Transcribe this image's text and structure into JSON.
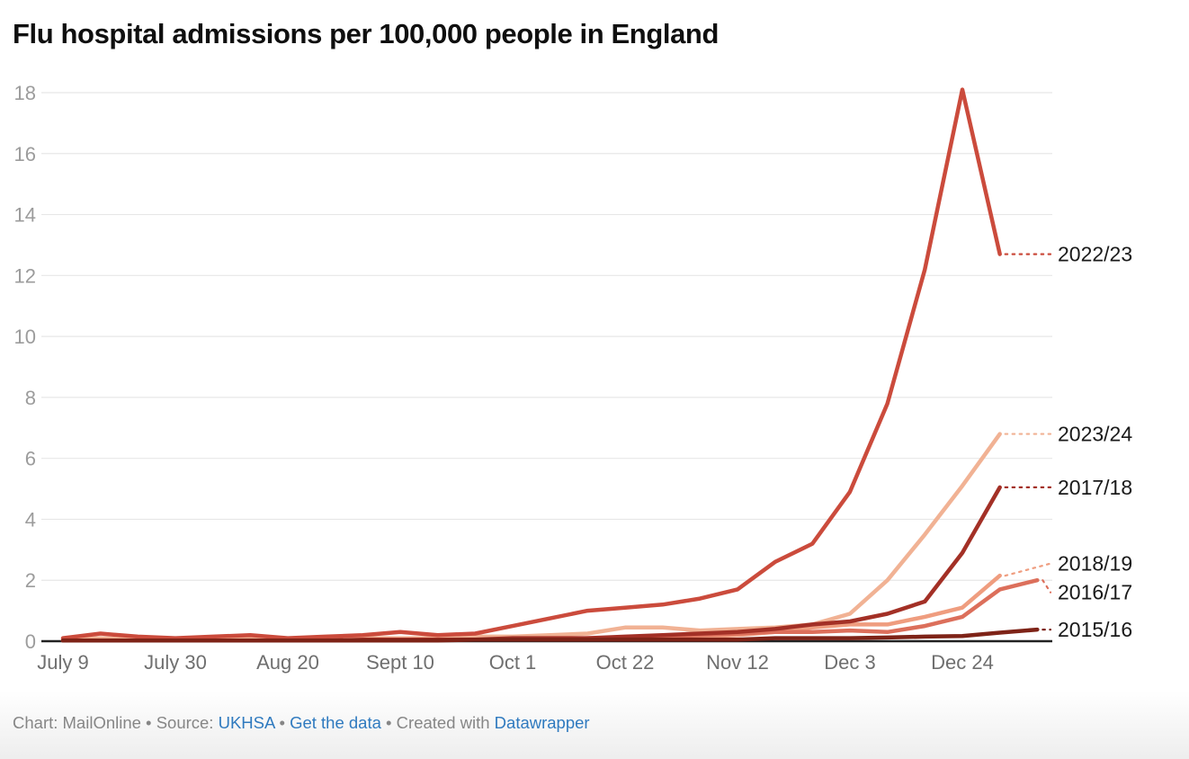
{
  "title": "Flu hospital admissions per 100,000 people in England",
  "footer": {
    "chart_credit": "Chart: MailOnline",
    "sep1": " • ",
    "source_label": "Source: ",
    "source_link": "UKHSA",
    "sep2": " • ",
    "get_data_link": "Get the data",
    "sep3": " • ",
    "created_with": "Created with ",
    "tool_link": "Datawrapper"
  },
  "colors": {
    "title_text": "#0f0f0f",
    "footer_text": "#868686",
    "footer_link": "#2f7abf",
    "grid_line": "#e7e7e7",
    "axis_baseline": "#222222",
    "y_tick_label": "#9c9c9c",
    "x_tick_label": "#6f6f6f",
    "series_end_label": "#1a1a1a"
  },
  "chart_data": {
    "type": "line",
    "title": "Flu hospital admissions per 100,000 people in England",
    "xlabel": "",
    "ylabel": "",
    "ylim": [
      0,
      18
    ],
    "y_ticks": [
      0,
      2,
      4,
      6,
      8,
      10,
      12,
      14,
      16,
      18
    ],
    "grid": true,
    "legend_position": "right-edge-labels",
    "x": [
      "July 9",
      "July 16",
      "July 23",
      "July 30",
      "Aug 6",
      "Aug 13",
      "Aug 20",
      "Aug 27",
      "Sept 3",
      "Sept 10",
      "Sept 17",
      "Sept 24",
      "Oct 1",
      "Oct 8",
      "Oct 15",
      "Oct 22",
      "Oct 29",
      "Nov 5",
      "Nov 12",
      "Nov 19",
      "Nov 26",
      "Dec 3",
      "Dec 10",
      "Dec 17",
      "Dec 24",
      "Dec 31",
      "Jan 7"
    ],
    "x_tick_indices": [
      0,
      3,
      6,
      9,
      12,
      15,
      18,
      21,
      24
    ],
    "x_tick_labels": [
      "July 9",
      "July 30",
      "Aug 20",
      "Sept 10",
      "Oct 1",
      "Oct 22",
      "Nov 12",
      "Dec 3",
      "Dec 24"
    ],
    "series": [
      {
        "name": "2023/24",
        "color": "#f1b294",
        "values": [
          0.05,
          0.1,
          0.05,
          0.05,
          0.05,
          0.1,
          0.05,
          0.05,
          0.1,
          0.1,
          0.1,
          0.15,
          0.15,
          0.2,
          0.25,
          0.45,
          0.45,
          0.35,
          0.4,
          0.45,
          0.55,
          0.9,
          2.0,
          3.5,
          5.1,
          6.8,
          null
        ]
      },
      {
        "name": "2018/19",
        "color": "#ef9d7f",
        "values": [
          0.02,
          0.02,
          0.02,
          0.02,
          0.02,
          0.02,
          0.02,
          0.02,
          0.02,
          0.05,
          0.05,
          0.05,
          0.05,
          0.1,
          0.1,
          0.1,
          0.15,
          0.15,
          0.2,
          0.3,
          0.45,
          0.55,
          0.55,
          0.8,
          1.1,
          2.15,
          null
        ]
      },
      {
        "name": "2016/17",
        "color": "#dc6f5b",
        "values": [
          0.02,
          0.02,
          0.02,
          0.02,
          0.02,
          0.02,
          0.02,
          0.02,
          0.02,
          0.05,
          0.05,
          0.05,
          0.05,
          0.05,
          0.1,
          0.1,
          0.15,
          0.2,
          0.25,
          0.3,
          0.3,
          0.35,
          0.3,
          0.5,
          0.8,
          1.7,
          2.0
        ]
      },
      {
        "name": "2022/23",
        "color": "#cb4b3c",
        "values": [
          0.1,
          0.25,
          0.15,
          0.1,
          0.15,
          0.2,
          0.1,
          0.15,
          0.2,
          0.3,
          0.2,
          0.25,
          0.5,
          0.75,
          1.0,
          1.1,
          1.2,
          1.4,
          1.7,
          2.6,
          3.2,
          4.9,
          7.8,
          12.2,
          18.1,
          12.7,
          null
        ]
      },
      {
        "name": "2017/18",
        "color": "#a33026",
        "values": [
          0.02,
          0.02,
          0.02,
          0.02,
          0.02,
          0.02,
          0.02,
          0.02,
          0.05,
          0.05,
          0.05,
          0.05,
          0.1,
          0.1,
          0.1,
          0.15,
          0.2,
          0.25,
          0.3,
          0.4,
          0.55,
          0.65,
          0.9,
          1.3,
          2.9,
          5.05,
          null
        ]
      },
      {
        "name": "2015/16",
        "color": "#7e2317",
        "values": [
          0.02,
          0.02,
          0.02,
          0.02,
          0.02,
          0.02,
          0.02,
          0.02,
          0.02,
          0.02,
          0.02,
          0.05,
          0.05,
          0.05,
          0.05,
          0.05,
          0.05,
          0.05,
          0.05,
          0.1,
          0.1,
          0.1,
          0.12,
          0.15,
          0.17,
          0.28,
          0.38
        ]
      }
    ]
  }
}
